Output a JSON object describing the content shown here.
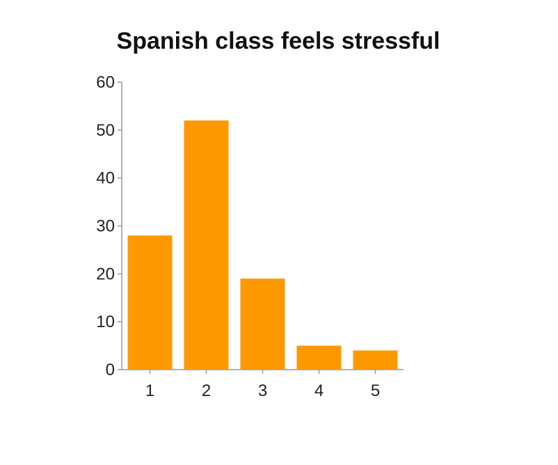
{
  "chart_data": {
    "type": "bar",
    "title": "Spanish class feels stressful",
    "xlabel": "",
    "ylabel": "",
    "categories": [
      "1",
      "2",
      "3",
      "4",
      "5"
    ],
    "values": [
      28,
      52,
      19,
      5,
      4
    ],
    "ylim": [
      0,
      60
    ],
    "yticks": [
      0,
      10,
      20,
      30,
      40,
      50,
      60
    ],
    "bar_color": "#FF9900",
    "grid": false,
    "legend": "none"
  }
}
